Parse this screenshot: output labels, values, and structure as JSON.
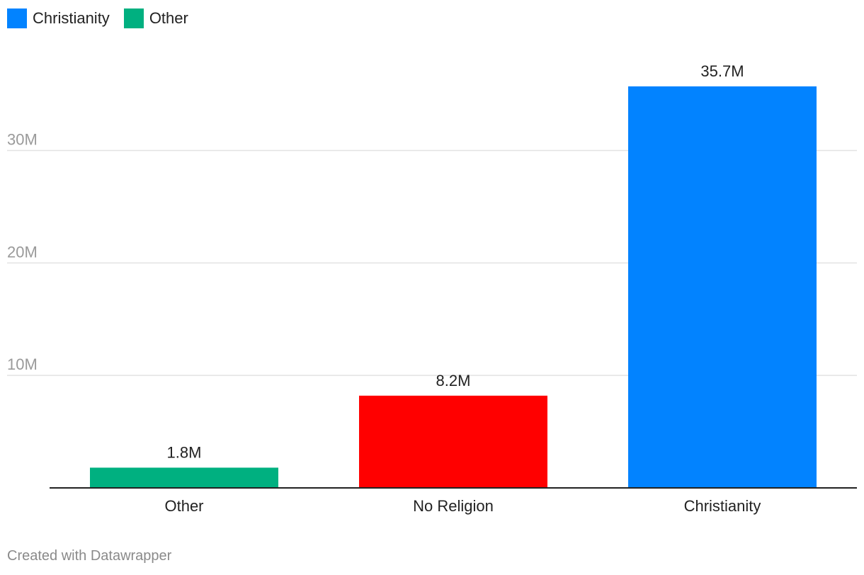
{
  "legend": [
    {
      "label": "Christianity",
      "color": "#0283ff"
    },
    {
      "label": "Other",
      "color": "#00b080"
    }
  ],
  "chart_data": {
    "type": "bar",
    "categories": [
      "Other",
      "No Religion",
      "Christianity"
    ],
    "values": [
      1.8,
      8.2,
      35.7
    ],
    "value_labels": [
      "1.8M",
      "8.2M",
      "35.7M"
    ],
    "colors": [
      "#00b080",
      "#ff0000",
      "#0283ff"
    ],
    "ylim": [
      0,
      35.7
    ],
    "yticks": [
      10,
      20,
      30
    ],
    "ytick_labels": [
      "10M",
      "20M",
      "30M"
    ],
    "grid": true
  },
  "footer": "Created with Datawrapper"
}
